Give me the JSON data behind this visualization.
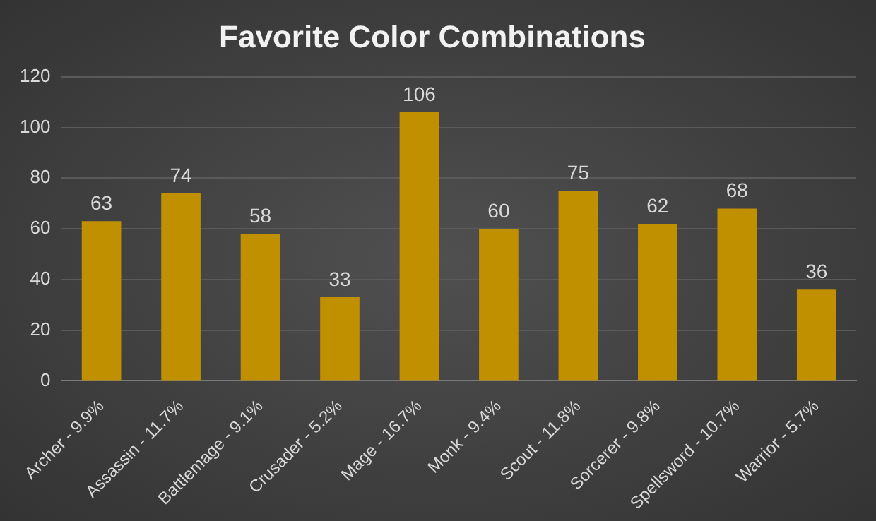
{
  "chart_data": {
    "type": "bar",
    "title": "Favorite Color Combinations",
    "categories": [
      "Archer - 9.9%",
      "Assassin - 11.7%",
      "Battlemage - 9.1%",
      "Crusader - 5.2%",
      "Mage - 16.7%",
      "Monk - 9.4%",
      "Scout - 11.8%",
      "Sorcerer - 9.8%",
      "Spellsword - 10.7%",
      "Warrior - 5.7%"
    ],
    "values": [
      63,
      74,
      58,
      33,
      106,
      60,
      75,
      62,
      68,
      36
    ],
    "color": "#c09000",
    "ylim": [
      0,
      120
    ],
    "yticks": [
      0,
      20,
      40,
      60,
      80,
      100,
      120
    ],
    "grid": "y",
    "data_labels": true
  }
}
